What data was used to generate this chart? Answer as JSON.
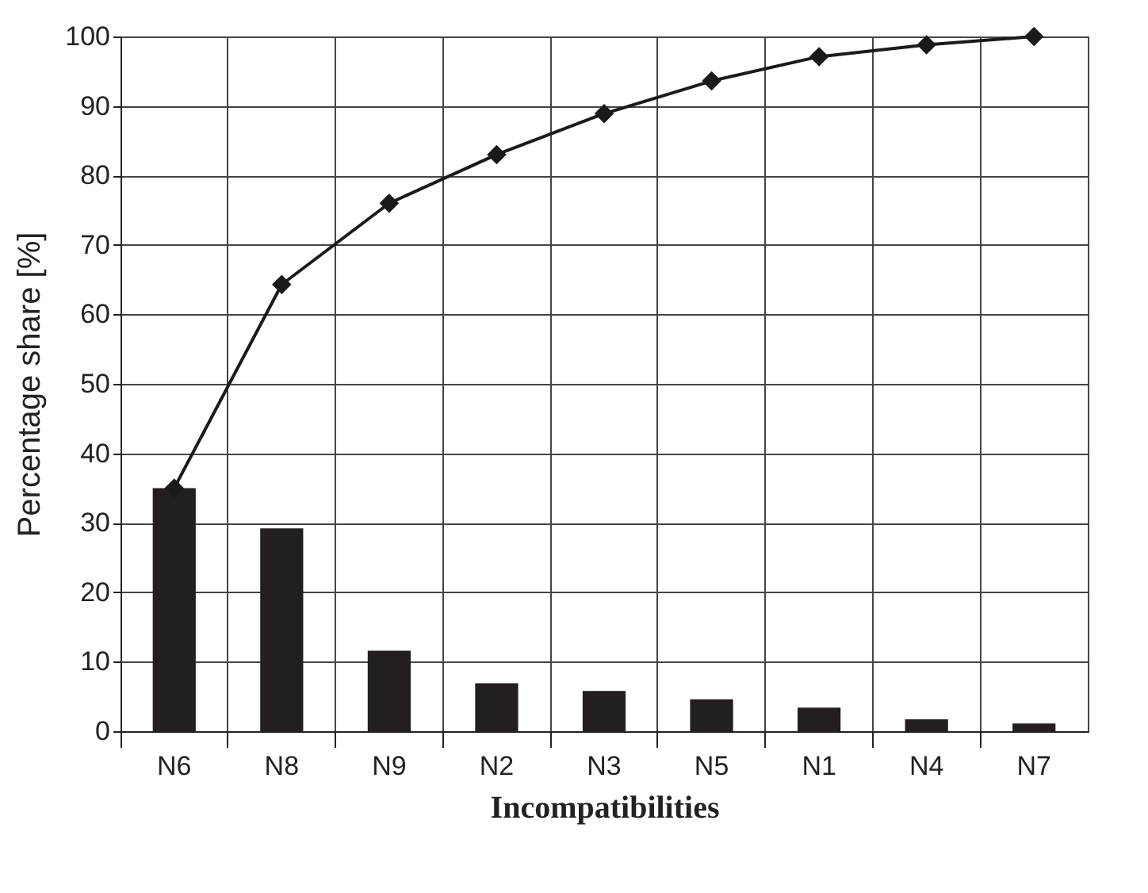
{
  "chart_data": {
    "type": "bar",
    "xlabel": "Incompatibilities",
    "ylabel": "Percentage share [%]",
    "categories": [
      "N6",
      "N8",
      "N9",
      "N2",
      "N3",
      "N5",
      "N1",
      "N4",
      "N7"
    ],
    "series": [
      {
        "color": "#231f20",
        "values": [
          35,
          29.2,
          11.6,
          6.9,
          5.8,
          4.6,
          3.4,
          1.7,
          1.1
        ]
      },
      {
        "type": "line",
        "color": "#1a1a1a",
        "values": [
          35,
          64.3,
          76,
          83,
          88.9,
          93.6,
          97.1,
          98.8,
          100
        ]
      }
    ],
    "ylim": [
      0,
      100
    ],
    "yticks": [
      0,
      10,
      20,
      30,
      40,
      50,
      60,
      70,
      80,
      90,
      100
    ],
    "grid": true,
    "marker": "diamond",
    "line_style": "solid"
  }
}
